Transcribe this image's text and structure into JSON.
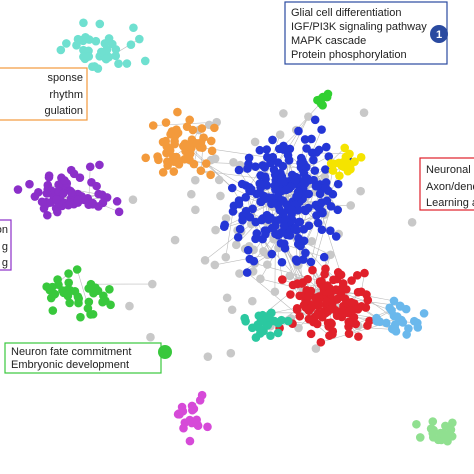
{
  "annotations": [
    {
      "lines": [
        "Glial cell differentiation",
        "IGF/PI3K signaling pathway",
        "MAPK cascade",
        "Protein phosphorylation"
      ],
      "badge": "1"
    },
    {
      "lines": [
        "sponse",
        "rhythm",
        "gulation"
      ]
    },
    {
      "lines": [
        "Neuronal",
        "Axon/dend",
        "Learning a"
      ]
    },
    {
      "lines": [
        "on",
        "g",
        "g"
      ]
    },
    {
      "lines": [
        "Neuron fate commitment",
        "Embryonic development"
      ]
    }
  ]
}
